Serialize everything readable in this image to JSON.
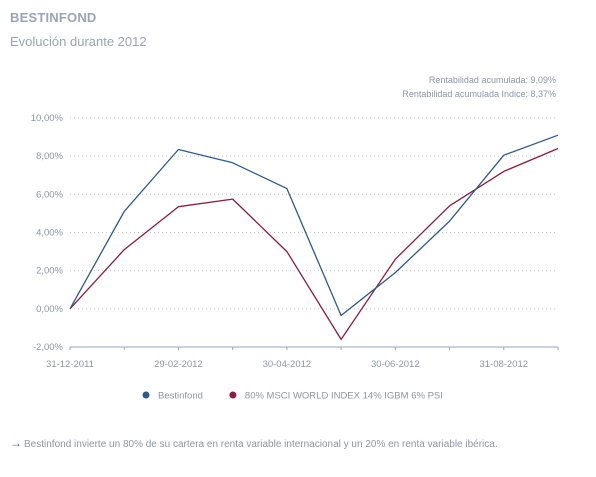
{
  "header": {
    "title": "BESTINFOND",
    "subtitle": "Evolución durante 2012"
  },
  "stats": {
    "fund_return": "Rentabilidad acumulada: 9,09%",
    "index_return": "Rentabilidad acumulada Indice: 8,37%"
  },
  "footnote": {
    "arrow": "→",
    "text": "Bestinfond invierte un 80% de su cartera en renta variable internacional y un 20% en renta variable ibérica."
  },
  "chart_data": {
    "type": "line",
    "x_ticks": [
      "31-12-2011",
      "29-02-2012",
      "30-04-2012",
      "30-06-2012",
      "31-08-2012"
    ],
    "x_points": [
      "31-12-2011",
      "31-01-2012",
      "29-02-2012",
      "31-03-2012",
      "30-04-2012",
      "31-05-2012",
      "30-06-2012",
      "31-07-2012",
      "31-08-2012",
      "30-09-2012"
    ],
    "y_ticks": [
      "10,00%",
      "8,00%",
      "6,00%",
      "4,00%",
      "2,00%",
      "0,00%",
      "-2,00%"
    ],
    "ylim": [
      -2,
      10
    ],
    "grid": true,
    "legend_position": "bottom",
    "series": [
      {
        "name": "Bestinfond",
        "color": "#2e5a8c",
        "values": [
          0.0,
          5.1,
          8.35,
          7.65,
          6.3,
          -0.35,
          1.9,
          4.6,
          8.05,
          9.1
        ]
      },
      {
        "name": "80% MSCI WORLD INDEX 14% IGBM 6% PSI",
        "color": "#8c1d3f",
        "values": [
          0.0,
          3.1,
          5.35,
          5.75,
          3.0,
          -1.6,
          2.6,
          5.4,
          7.2,
          8.4
        ]
      }
    ]
  }
}
